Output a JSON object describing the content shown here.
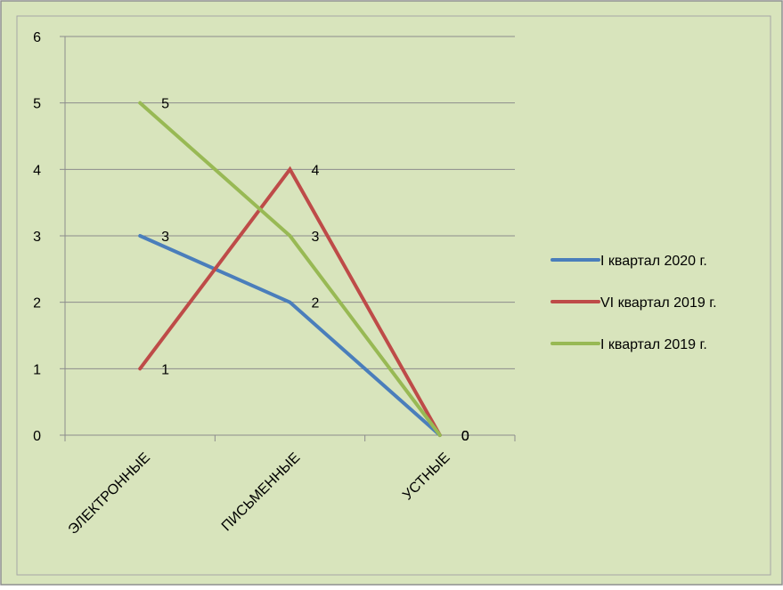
{
  "chart_data": {
    "type": "line",
    "categories": [
      "ЭЛЕКТРОННЫЕ",
      "ПИСЬМЕННЫЕ",
      "УСТНЫЕ"
    ],
    "series": [
      {
        "name": "I квартал 2020 г.",
        "values": [
          3,
          2,
          0
        ],
        "color": "#4A7EBB"
      },
      {
        "name": "VI квартал 2019 г.",
        "values": [
          1,
          4,
          0
        ],
        "color": "#BE4B48"
      },
      {
        "name": "I квартал 2019 г.",
        "values": [
          5,
          3,
          0
        ],
        "color": "#98B954"
      }
    ],
    "ylim": [
      0,
      6
    ],
    "yticks": [
      "0",
      "1",
      "2",
      "3",
      "4",
      "5",
      "6"
    ],
    "grid": true,
    "legend_position": "right",
    "background_color": "#D8E4BC"
  }
}
